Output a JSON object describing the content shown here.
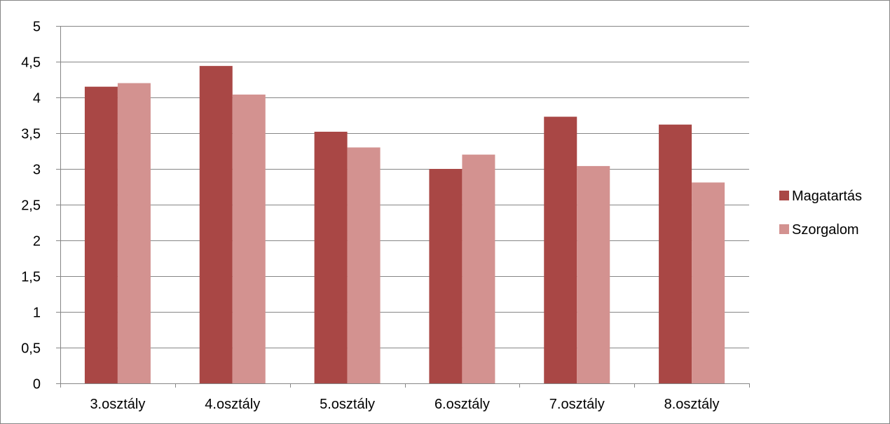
{
  "chart_data": {
    "type": "bar",
    "title": "",
    "xlabel": "",
    "ylabel": "",
    "categories": [
      "3.osztály",
      "4.osztály",
      "5.osztály",
      "6.osztály",
      "7.osztály",
      "8.osztály"
    ],
    "series": [
      {
        "name": "Magatartás",
        "color": "#A94745",
        "values": [
          4.15,
          4.44,
          3.52,
          3.0,
          3.73,
          3.62
        ]
      },
      {
        "name": "Szorgalom",
        "color": "#D39290",
        "values": [
          4.2,
          4.04,
          3.3,
          3.2,
          3.04,
          2.81
        ]
      }
    ],
    "ylim": [
      0,
      5
    ],
    "yticks": [
      {
        "value": 0,
        "label": "0"
      },
      {
        "value": 0.5,
        "label": "0,5"
      },
      {
        "value": 1,
        "label": "1"
      },
      {
        "value": 1.5,
        "label": "1,5"
      },
      {
        "value": 2,
        "label": "2"
      },
      {
        "value": 2.5,
        "label": "2,5"
      },
      {
        "value": 3,
        "label": "3"
      },
      {
        "value": 3.5,
        "label": "3,5"
      },
      {
        "value": 4,
        "label": "4"
      },
      {
        "value": 4.5,
        "label": "4,5"
      },
      {
        "value": 5,
        "label": "5"
      }
    ],
    "grid": true,
    "legend_position": "right",
    "gridline_color": "#868686",
    "axis_color": "#868686"
  }
}
